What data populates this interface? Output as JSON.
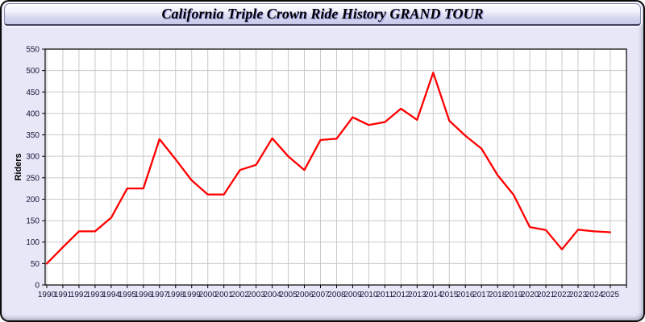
{
  "window": {
    "title": "California Triple Crown Ride History GRAND TOUR"
  },
  "chart_data": {
    "type": "line",
    "title": "California Triple Crown Ride History GRAND TOUR",
    "xlabel": "",
    "ylabel": "Riders",
    "x": [
      1990,
      1991,
      1992,
      1993,
      1994,
      1995,
      1996,
      1997,
      1998,
      1999,
      2000,
      2001,
      2002,
      2003,
      2004,
      2005,
      2006,
      2007,
      2008,
      2009,
      2010,
      2011,
      2012,
      2013,
      2014,
      2015,
      2016,
      2017,
      2018,
      2019,
      2020,
      2021,
      2022,
      2023,
      2024,
      2025
    ],
    "values": [
      50,
      88,
      125,
      125,
      157,
      225,
      225,
      340,
      293,
      244,
      211,
      211,
      268,
      280,
      342,
      300,
      268,
      338,
      341,
      391,
      373,
      380,
      411,
      385,
      495,
      383,
      348,
      318,
      256,
      210,
      135,
      128,
      83,
      129,
      125,
      123
    ],
    "ylim": [
      0,
      550
    ],
    "ytick_step": 50,
    "grid": true,
    "legend": "none",
    "line_color": "#ff0000",
    "grid_color": "#c9c9c9",
    "axis_color": "#000000",
    "tick_label_color": "#15153a",
    "plot_bg": "#ffffff",
    "page_bg": "#e7e7f7"
  }
}
